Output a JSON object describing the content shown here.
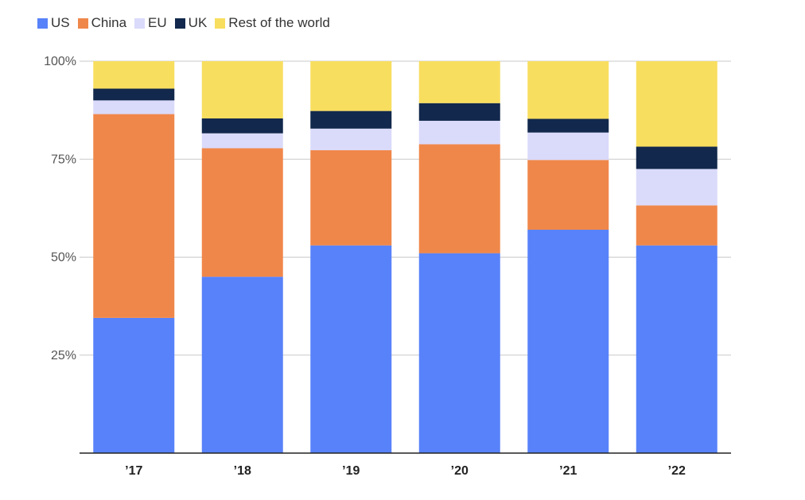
{
  "chart_data": {
    "type": "bar",
    "stacked": true,
    "categories": [
      "’17",
      "’18",
      "’19",
      "’20",
      "’21",
      "’22"
    ],
    "series": [
      {
        "name": "US",
        "color": "#5882fa",
        "values": [
          34.5,
          45.0,
          53.0,
          51.0,
          57.0,
          53.0
        ]
      },
      {
        "name": "China",
        "color": "#f0874a",
        "values": [
          52.0,
          32.8,
          24.3,
          27.8,
          17.8,
          10.2
        ]
      },
      {
        "name": "EU",
        "color": "#dadafa",
        "values": [
          3.5,
          3.8,
          5.5,
          6.0,
          7.0,
          9.3
        ]
      },
      {
        "name": "UK",
        "color": "#12284c",
        "values": [
          3.0,
          3.8,
          4.5,
          4.5,
          3.5,
          5.7
        ]
      },
      {
        "name": "Rest of the world",
        "color": "#f8de5f",
        "values": [
          7.0,
          14.6,
          12.7,
          10.7,
          14.7,
          21.8
        ]
      }
    ],
    "ylim": [
      0,
      100
    ],
    "yticks": [
      "25%",
      "50%",
      "75%",
      "100%"
    ],
    "ytick_values": [
      25,
      50,
      75,
      100
    ],
    "grid": true,
    "legend_position": "top-left"
  }
}
